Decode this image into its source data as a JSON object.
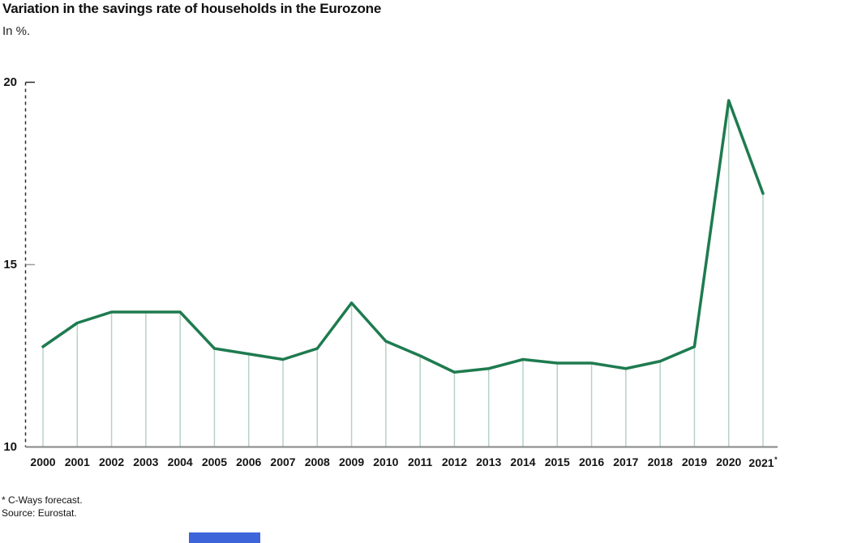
{
  "header": {
    "title": "Variation in the savings rate of households in the Eurozone",
    "subtitle": "In %."
  },
  "footer": {
    "footnote": "* C-Ways forecast.",
    "source": "Source: Eurostat."
  },
  "colors": {
    "line": "#1e7b4f",
    "stem": "#b7d3c5",
    "baseline": "#858585",
    "axis": "#2a2a2a",
    "tick_minor": "#9b9b9b",
    "text": "#141414",
    "accent_bar": "#3d64d8"
  },
  "chart_data": {
    "type": "line",
    "title": "Variation in the savings rate of households in the Eurozone",
    "unit_label": "In %.",
    "categories": [
      "2000",
      "2001",
      "2002",
      "2003",
      "2004",
      "2005",
      "2006",
      "2007",
      "2008",
      "2009",
      "2010",
      "2011",
      "2012",
      "2013",
      "2014",
      "2015",
      "2016",
      "2017",
      "2018",
      "2019",
      "2020",
      "2021*"
    ],
    "values": [
      12.75,
      13.4,
      13.7,
      13.7,
      13.7,
      12.7,
      12.55,
      12.4,
      12.7,
      13.95,
      12.9,
      12.5,
      12.05,
      12.15,
      12.4,
      12.3,
      12.3,
      12.15,
      12.35,
      12.75,
      19.5,
      16.95
    ],
    "ylim": [
      10,
      20
    ],
    "yticks": [
      10,
      15,
      20
    ],
    "grid": false,
    "legend": "none",
    "y_axis_style": "dashed",
    "point_stems": true,
    "annotations": {
      "footnote": "* C-Ways forecast.",
      "source": "Source: Eurostat."
    }
  }
}
